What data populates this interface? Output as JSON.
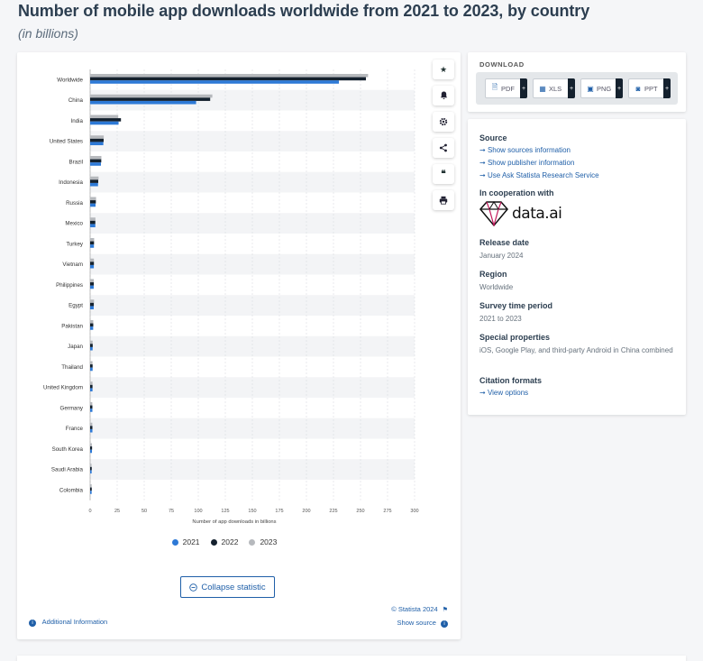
{
  "header": {
    "title": "Number of mobile app downloads worldwide from 2021 to 2023, by country",
    "subtitle": "(in billions)"
  },
  "colors": {
    "s2021": "#2d79d6",
    "s2022": "#14212e",
    "s2023": "#b6b9bd",
    "link": "#1f5fa8"
  },
  "toolbar": {
    "icons": [
      "star-icon",
      "bell-icon",
      "gear-icon",
      "share-icon",
      "quote-icon",
      "print-icon"
    ]
  },
  "chart_data": {
    "type": "bar",
    "orientation": "horizontal",
    "categories": [
      "Worldwide",
      "China",
      "India",
      "United States",
      "Brazil",
      "Indonesia",
      "Russia",
      "Mexico",
      "Turkey",
      "Vietnam",
      "Philippines",
      "Egypt",
      "Pakistan",
      "Japan",
      "Thailand",
      "United Kingdom",
      "Germany",
      "France",
      "South Korea",
      "Saudi Arabia",
      "Colombia"
    ],
    "series": [
      {
        "name": "2021",
        "values": [
          230,
          98,
          26.3,
          12.2,
          10,
          7.3,
          5,
          4.8,
          3.5,
          3.4,
          3.3,
          3.3,
          2.8,
          2.3,
          2.3,
          2.2,
          2.1,
          2.1,
          1.7,
          1.4,
          1.4
        ]
      },
      {
        "name": "2022",
        "values": [
          255,
          111,
          28.5,
          12.5,
          10.3,
          7.5,
          5.3,
          4.8,
          3.6,
          3.5,
          3.4,
          3.4,
          2.9,
          2.4,
          2.3,
          2.2,
          2.1,
          2.1,
          1.8,
          1.5,
          1.5
        ]
      },
      {
        "name": "2023",
        "values": [
          257,
          113,
          26,
          12.6,
          10.4,
          7.8,
          5.5,
          4.9,
          3.7,
          3.5,
          3.4,
          3.6,
          2.9,
          2.3,
          2.2,
          2.2,
          2,
          2,
          1.6,
          1.3,
          1.4
        ]
      }
    ],
    "xlabel": "Number of app downloads in billions",
    "ylabel": "",
    "xlim": [
      0,
      300
    ],
    "xticks": [
      "0",
      "25",
      "50",
      "75",
      "100",
      "125",
      "150",
      "175",
      "200",
      "225",
      "250",
      "275",
      "300"
    ],
    "grid": true,
    "legend": "bottom-center"
  },
  "chart_footer": {
    "collapse_label": "Collapse statistic",
    "credit": "© Statista 2024",
    "show_source": "Show source",
    "additional_info": "Additional Information"
  },
  "download": {
    "title": "DOWNLOAD",
    "buttons": [
      "PDF",
      "XLS",
      "PNG",
      "PPT"
    ]
  },
  "info": {
    "source_title": "Source",
    "source_links": [
      "Show sources information",
      "Show publisher information",
      "Use Ask Statista Research Service"
    ],
    "cooperation_title": "In cooperation with",
    "cooperation_logo": "data.ai",
    "release_title": "Release date",
    "release_value": "January 2024",
    "region_title": "Region",
    "region_value": "Worldwide",
    "period_title": "Survey time period",
    "period_value": "2021 to 2023",
    "special_title": "Special properties",
    "special_value": "iOS, Google Play, and third-party Android in China combined",
    "citation_title": "Citation formats",
    "citation_link": "View options"
  }
}
